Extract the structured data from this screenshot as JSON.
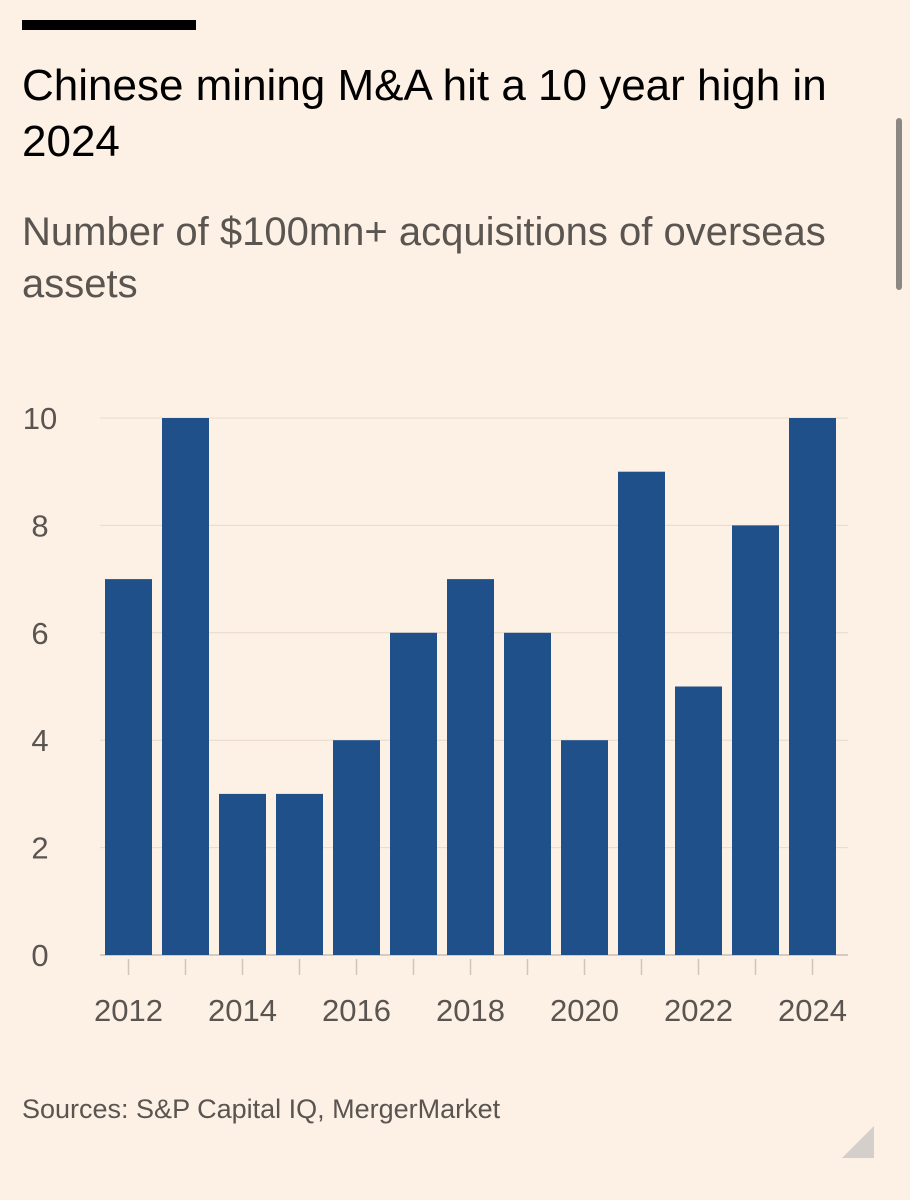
{
  "title": "Chinese mining M&A hit a 10 year high in 2024",
  "subtitle": "Number of $100mn+ acquisitions of overseas assets",
  "source": "Sources: S&P Capital IQ, MergerMarket",
  "colors": {
    "background": "#fdf1e6",
    "bar": "#1f5089",
    "gridline": "#e6d9cc",
    "text_muted": "#5a5550"
  },
  "chart_data": {
    "type": "bar",
    "title": "Chinese mining M&A hit a 10 year high in 2024",
    "subtitle": "Number of $100mn+ acquisitions of overseas assets",
    "xlabel": "",
    "ylabel": "",
    "categories": [
      "2012",
      "2013",
      "2014",
      "2015",
      "2016",
      "2017",
      "2018",
      "2019",
      "2020",
      "2021",
      "2022",
      "2023",
      "2024"
    ],
    "values": [
      7,
      10,
      3,
      3,
      4,
      6,
      7,
      6,
      4,
      9,
      5,
      8,
      10
    ],
    "x_tick_labels": [
      "2012",
      "2014",
      "2016",
      "2018",
      "2020",
      "2022",
      "2024"
    ],
    "y_ticks": [
      0,
      2,
      4,
      6,
      8,
      10
    ],
    "y_tick_labels": [
      "0",
      "2",
      "4",
      "6",
      "8",
      "10"
    ],
    "ylim": [
      0,
      10
    ],
    "grid": true,
    "legend": "none"
  }
}
